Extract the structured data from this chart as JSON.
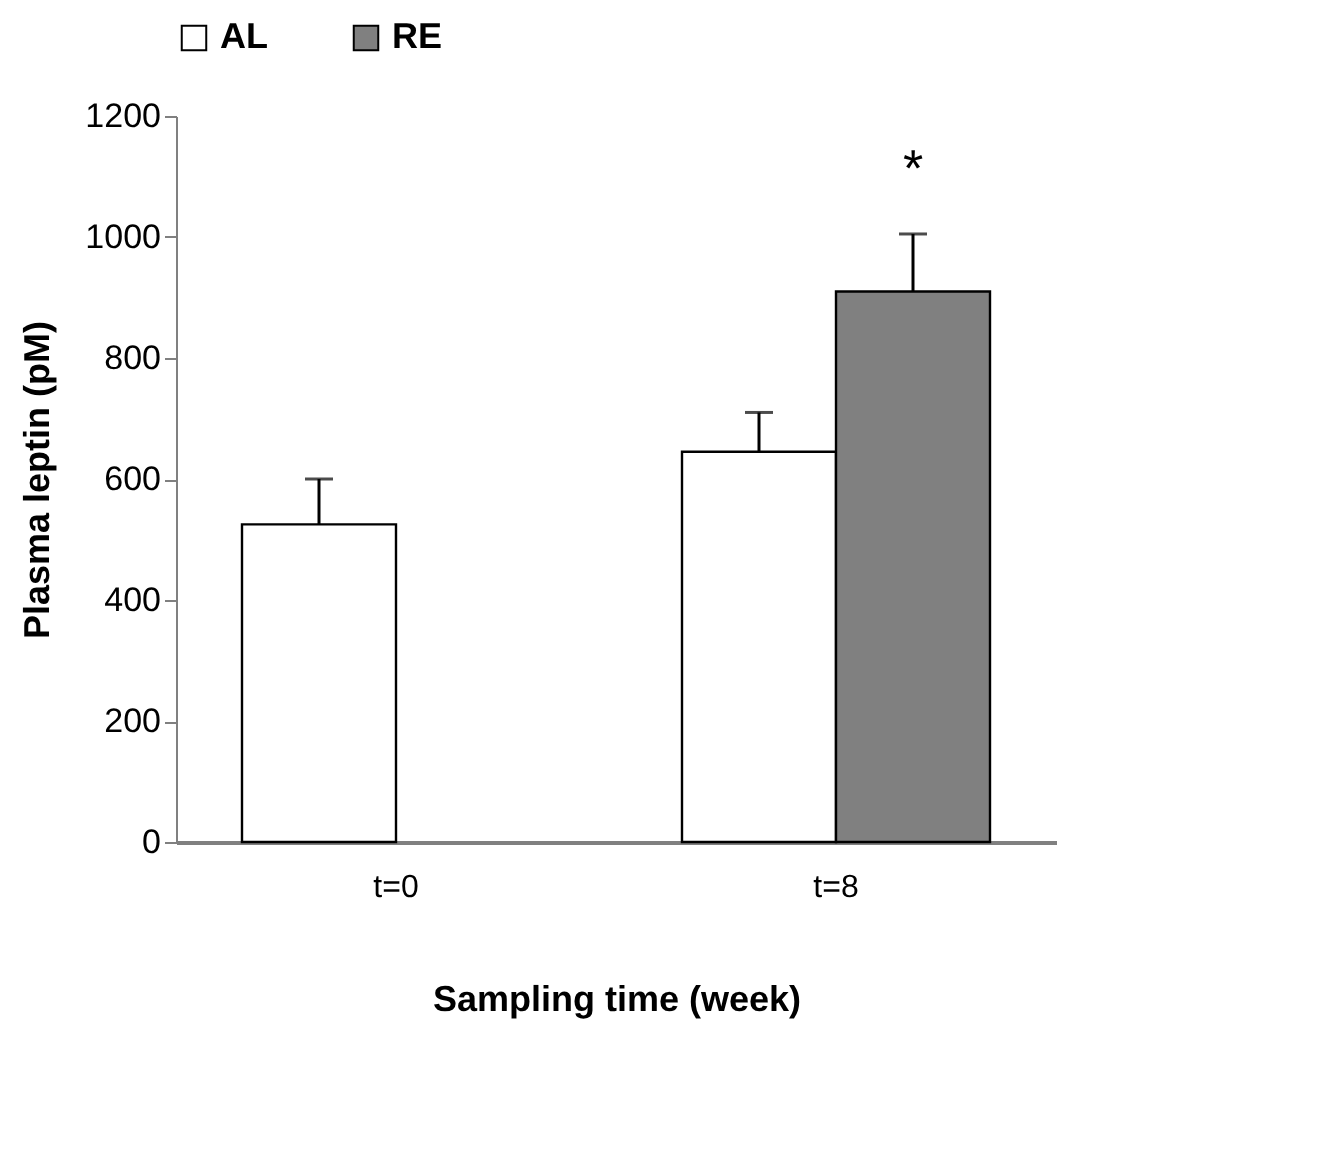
{
  "chart_data": {
    "type": "bar",
    "xlabel": "Sampling time (week)",
    "ylabel": "Plasma leptin (pM)",
    "categories": [
      "t=0",
      "t=8"
    ],
    "series": [
      {
        "name": "AL",
        "color": "#ffffff",
        "values": [
          525,
          645
        ],
        "errors": [
          75,
          65
        ]
      },
      {
        "name": "RE",
        "color": "#808080",
        "values": [
          null,
          910
        ],
        "errors": [
          null,
          95
        ]
      }
    ],
    "ylim": [
      0,
      1200
    ],
    "yticks": [
      0,
      200,
      400,
      600,
      800,
      1000,
      1200
    ],
    "grid": false,
    "legend": "top",
    "annotations": [
      "*"
    ]
  }
}
